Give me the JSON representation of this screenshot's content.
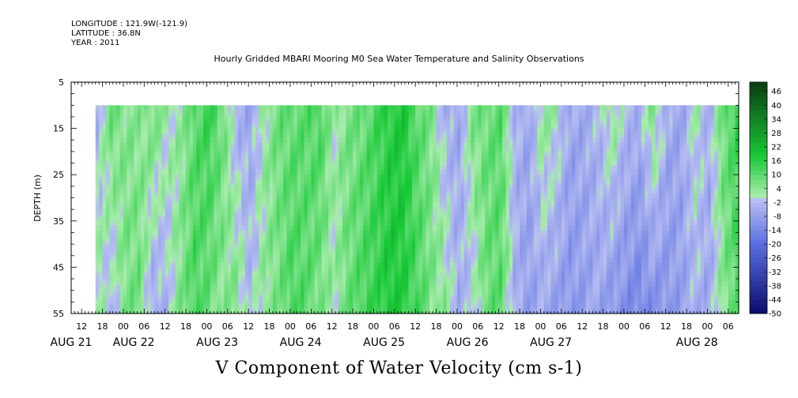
{
  "header": {
    "longitude": "LONGITUDE : 121.9W(-121.9)",
    "latitude": "LATITUDE : 36.8N",
    "year": "YEAR : 2011",
    "title": "Hourly Gridded MBARI Mooring M0 Sea Water Temperature and Salinity Observations"
  },
  "caption": "V Component of Water Velocity (cm s-1)",
  "chart_data": {
    "type": "heatmap",
    "ylabel": "DEPTH (m)",
    "y_range": [
      5,
      55
    ],
    "y_inverted": true,
    "y_ticks": [
      "5",
      "15",
      "25",
      "35",
      "45",
      "55"
    ],
    "x_range_hours": [
      -15,
      177
    ],
    "x_hour_ticks": [
      {
        "h": -12,
        "label": "12"
      },
      {
        "h": -6,
        "label": "18"
      },
      {
        "h": 0,
        "label": "00"
      },
      {
        "h": 6,
        "label": "06"
      },
      {
        "h": 12,
        "label": "12"
      },
      {
        "h": 18,
        "label": "18"
      },
      {
        "h": 24,
        "label": "00"
      },
      {
        "h": 30,
        "label": "06"
      },
      {
        "h": 36,
        "label": "12"
      },
      {
        "h": 42,
        "label": "18"
      },
      {
        "h": 48,
        "label": "00"
      },
      {
        "h": 54,
        "label": "06"
      },
      {
        "h": 60,
        "label": "12"
      },
      {
        "h": 66,
        "label": "18"
      },
      {
        "h": 72,
        "label": "00"
      },
      {
        "h": 78,
        "label": "06"
      },
      {
        "h": 84,
        "label": "12"
      },
      {
        "h": 90,
        "label": "18"
      },
      {
        "h": 96,
        "label": "00"
      },
      {
        "h": 102,
        "label": "06"
      },
      {
        "h": 108,
        "label": "12"
      },
      {
        "h": 114,
        "label": "18"
      },
      {
        "h": 120,
        "label": "00"
      },
      {
        "h": 126,
        "label": "06"
      },
      {
        "h": 132,
        "label": "12"
      },
      {
        "h": 138,
        "label": "18"
      },
      {
        "h": 144,
        "label": "00"
      },
      {
        "h": 150,
        "label": "06"
      },
      {
        "h": 156,
        "label": "12"
      },
      {
        "h": 162,
        "label": "18"
      },
      {
        "h": 168,
        "label": "00"
      },
      {
        "h": 174,
        "label": "06"
      }
    ],
    "x_day_labels": [
      {
        "h": -15,
        "label": "AUG 21"
      },
      {
        "h": 3,
        "label": "AUG 22"
      },
      {
        "h": 27,
        "label": "AUG 23"
      },
      {
        "h": 51,
        "label": "AUG 24"
      },
      {
        "h": 75,
        "label": "AUG 25"
      },
      {
        "h": 99,
        "label": "AUG 26"
      },
      {
        "h": 123,
        "label": "AUG 27"
      },
      {
        "h": 165,
        "label": "AUG 28"
      }
    ],
    "data_start_hour": -8,
    "data_end_hour": 177,
    "data_depth_range": [
      10,
      55
    ],
    "colorbar": {
      "min": -50,
      "max": 50,
      "step": 2,
      "labels": [
        "46",
        "40",
        "34",
        "28",
        "22",
        "16",
        "10",
        "4",
        "-2",
        "-8",
        "-14",
        "-20",
        "-26",
        "-32",
        "-38",
        "-44",
        "-50"
      ],
      "colors": {
        "strong_positive": "#0b3d12",
        "positive": "#18c936",
        "weak_positive": "#a8ecac",
        "weak_negative": "#b7bef2",
        "negative": "#5a6ee0",
        "strong_negative": "#090c6e"
      }
    },
    "profile": {
      "hours": [
        -8,
        -4,
        0,
        4,
        8,
        12,
        16,
        20,
        24,
        28,
        32,
        36,
        40,
        44,
        48,
        52,
        56,
        60,
        64,
        68,
        72,
        76,
        80,
        84,
        88,
        92,
        96,
        100,
        104,
        108,
        112,
        116,
        120,
        124,
        128,
        132,
        136,
        140,
        144,
        148,
        152,
        156,
        160,
        164,
        168,
        172,
        176
      ],
      "v_shallow": [
        -3,
        8,
        5,
        4,
        7,
        2,
        3,
        10,
        14,
        8,
        -4,
        -6,
        2,
        8,
        9,
        10,
        12,
        2,
        6,
        8,
        12,
        16,
        18,
        10,
        6,
        -4,
        -6,
        6,
        8,
        10,
        -3,
        -6,
        4,
        2,
        -6,
        -5,
        -3,
        4,
        -2,
        -4,
        6,
        -5,
        -6,
        2,
        -4,
        8,
        14
      ],
      "v_deep": [
        4,
        -4,
        6,
        8,
        -6,
        -3,
        6,
        12,
        8,
        4,
        6,
        -2,
        4,
        6,
        12,
        10,
        6,
        2,
        8,
        12,
        14,
        18,
        16,
        12,
        6,
        4,
        -4,
        -2,
        8,
        10,
        -4,
        -8,
        -6,
        -8,
        -10,
        -8,
        -6,
        -10,
        -12,
        -14,
        -12,
        -10,
        -8,
        -4,
        -6,
        4,
        10
      ]
    }
  }
}
